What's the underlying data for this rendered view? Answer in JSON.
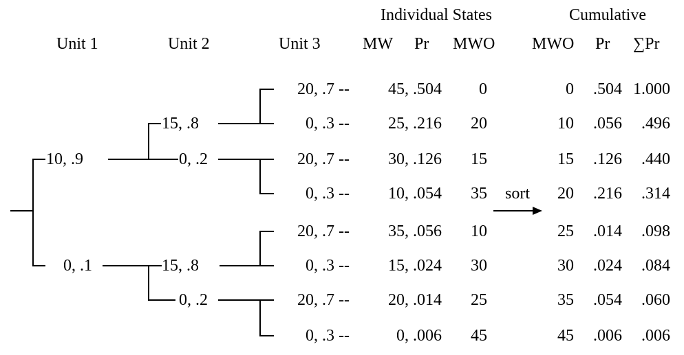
{
  "group_headers": {
    "individual": "Individual States",
    "cumulative": "Cumulative"
  },
  "column_headers": {
    "unit1": "Unit 1",
    "unit2": "Unit 2",
    "unit3": "Unit 3",
    "mw": "MW",
    "pr": "Pr",
    "mwo": "MWO",
    "cum_mwo": "MWO",
    "cum_pr": "Pr",
    "cum_sum_pr": "∑Pr"
  },
  "unit1": [
    {
      "label": "10, .9"
    },
    {
      "label": "0, .1"
    }
  ],
  "unit2": [
    {
      "label": "15, .8"
    },
    {
      "label": "0, .2"
    },
    {
      "label": "15, .8"
    },
    {
      "label": "0, .2"
    }
  ],
  "unit3": [
    {
      "label": "20, .7 --"
    },
    {
      "label": "0, .3 --"
    },
    {
      "label": "20, .7 --"
    },
    {
      "label": "0, .3 --"
    },
    {
      "label": "20, .7 --"
    },
    {
      "label": "0, .3 --"
    },
    {
      "label": "20, .7 --"
    },
    {
      "label": "0, .3 --"
    }
  ],
  "individual_states": [
    {
      "mw_pr": "45, .504",
      "mwo": "0"
    },
    {
      "mw_pr": "25, .216",
      "mwo": "20"
    },
    {
      "mw_pr": "30, .126",
      "mwo": "15"
    },
    {
      "mw_pr": "10, .054",
      "mwo": "35"
    },
    {
      "mw_pr": "35, .056",
      "mwo": "10"
    },
    {
      "mw_pr": "15, .024",
      "mwo": "30"
    },
    {
      "mw_pr": "20, .014",
      "mwo": "25"
    },
    {
      "mw_pr": "0, .006",
      "mwo": "45"
    }
  ],
  "sort_label": "sort",
  "cumulative": [
    {
      "mwo": "0",
      "pr": ".504",
      "sum_pr": "1.000"
    },
    {
      "mwo": "10",
      "pr": ".056",
      "sum_pr": ".496"
    },
    {
      "mwo": "15",
      "pr": ".126",
      "sum_pr": ".440"
    },
    {
      "mwo": "20",
      "pr": ".216",
      "sum_pr": ".314"
    },
    {
      "mwo": "25",
      "pr": ".014",
      "sum_pr": ".098"
    },
    {
      "mwo": "30",
      "pr": ".024",
      "sum_pr": ".084"
    },
    {
      "mwo": "35",
      "pr": ".054",
      "sum_pr": ".060"
    },
    {
      "mwo": "45",
      "pr": ".006",
      "sum_pr": ".006"
    }
  ]
}
